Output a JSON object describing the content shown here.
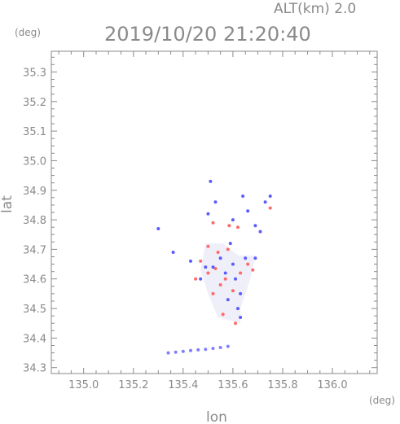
{
  "header": {
    "alt_label": "ALT(km) 2.0",
    "timestamp": "2019/10/20 21:20:40"
  },
  "chart_data": {
    "type": "scatter",
    "title": "2019/10/20 21:20:40",
    "subtitle": "ALT(km) 2.0",
    "xlabel": "lon",
    "ylabel": "lat",
    "x_unit": "(deg)",
    "y_unit": "(deg)",
    "xlim": [
      134.87,
      136.18
    ],
    "ylim": [
      34.28,
      35.37
    ],
    "x_ticks": [
      "135.0",
      "135.2",
      "135.4",
      "135.6",
      "135.8",
      "136.0"
    ],
    "y_ticks": [
      "34.3",
      "34.4",
      "34.5",
      "34.6",
      "34.7",
      "34.8",
      "34.9",
      "35.0",
      "35.1",
      "35.2",
      "35.3"
    ],
    "grid": false,
    "colors": {
      "axis": "#8a8a8a",
      "positive": "#ff6a6a",
      "negative": "#5c5cff",
      "faint": "#efeff9"
    },
    "series": [
      {
        "color": "#ff6a6a",
        "points": [
          [
            135.52,
            34.79
          ],
          [
            135.585,
            34.78
          ],
          [
            135.62,
            34.775
          ],
          [
            135.5,
            34.62
          ],
          [
            135.53,
            34.635
          ],
          [
            135.55,
            34.58
          ],
          [
            135.57,
            34.6
          ],
          [
            135.6,
            34.56
          ],
          [
            135.63,
            34.62
          ],
          [
            135.66,
            34.65
          ],
          [
            135.47,
            34.66
          ],
          [
            135.54,
            34.69
          ],
          [
            135.58,
            34.7
          ],
          [
            135.61,
            34.45
          ],
          [
            135.56,
            34.48
          ],
          [
            135.52,
            34.55
          ],
          [
            135.68,
            34.63
          ],
          [
            135.5,
            34.71
          ],
          [
            135.75,
            34.84
          ],
          [
            135.45,
            34.6
          ]
        ]
      },
      {
        "color": "#5c5cff",
        "points": [
          [
            135.51,
            34.93
          ],
          [
            135.53,
            34.86
          ],
          [
            135.5,
            34.82
          ],
          [
            135.6,
            34.8
          ],
          [
            135.66,
            34.83
          ],
          [
            135.73,
            34.86
          ],
          [
            135.75,
            34.88
          ],
          [
            135.69,
            34.78
          ],
          [
            135.3,
            34.77
          ],
          [
            135.43,
            34.66
          ],
          [
            135.49,
            34.64
          ],
          [
            135.55,
            34.67
          ],
          [
            135.6,
            34.65
          ],
          [
            135.65,
            34.67
          ],
          [
            135.69,
            34.67
          ],
          [
            135.57,
            34.62
          ],
          [
            135.61,
            34.6
          ],
          [
            135.63,
            34.55
          ],
          [
            135.62,
            34.5
          ],
          [
            135.63,
            34.47
          ],
          [
            135.58,
            34.53
          ],
          [
            135.52,
            34.64
          ],
          [
            135.47,
            34.6
          ],
          [
            135.36,
            34.69
          ],
          [
            135.64,
            34.88
          ],
          [
            135.71,
            34.76
          ],
          [
            135.59,
            34.72
          ]
        ]
      },
      {
        "color": "#8080ff",
        "points": [
          [
            135.34,
            34.35
          ],
          [
            135.37,
            34.352
          ],
          [
            135.4,
            34.355
          ],
          [
            135.43,
            34.358
          ],
          [
            135.46,
            34.36
          ],
          [
            135.49,
            34.362
          ],
          [
            135.52,
            34.365
          ],
          [
            135.55,
            34.368
          ],
          [
            135.58,
            34.372
          ]
        ]
      }
    ]
  }
}
